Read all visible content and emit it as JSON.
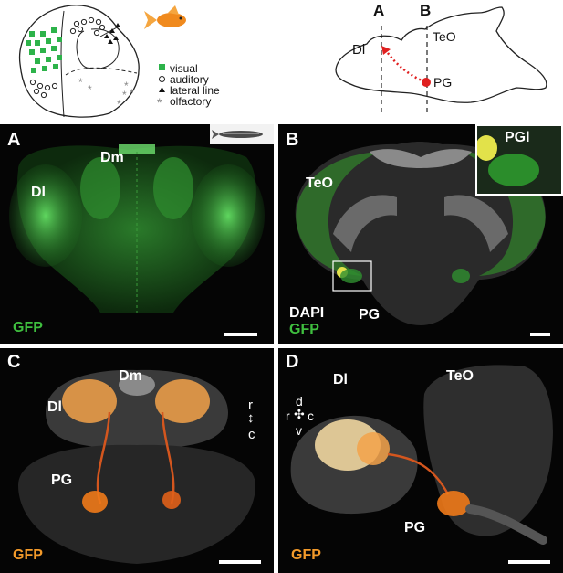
{
  "schematic_left": {
    "legend": {
      "visual": "visual",
      "auditory": "auditory",
      "lateral_line": "lateral line",
      "olfactory": "olfactory"
    },
    "colors": {
      "visual": "#2db34a",
      "goldfish": "#f08a1e"
    },
    "icons": [
      "goldfish-icon"
    ]
  },
  "schematic_right": {
    "plane_a": "A",
    "plane_b": "B",
    "dl": "Dl",
    "teo": "TeO",
    "pg": "PG",
    "colors": {
      "projection": "#e02020"
    }
  },
  "panel_a": {
    "letter": "A",
    "dl": "Dl",
    "dm": "Dm",
    "gfp": "GFP",
    "icons": [
      "zebrafish-icon"
    ]
  },
  "panel_b": {
    "letter": "B",
    "teo": "TeO",
    "pgl": "PGl",
    "dapi": "DAPI",
    "gfp": "GFP",
    "pg": "PG"
  },
  "panel_c": {
    "letter": "C",
    "dm": "Dm",
    "dl": "Dl",
    "pg": "PG",
    "gfp": "GFP",
    "axis_r": "r",
    "axis_c": "c"
  },
  "panel_d": {
    "letter": "D",
    "dl": "Dl",
    "teo": "TeO",
    "pg": "PG",
    "gfp": "GFP",
    "axis_d": "d",
    "axis_r": "r",
    "axis_c": "c",
    "axis_v": "v"
  },
  "colors": {
    "gfp_green": "#3fbf3f",
    "gfp_orange": "#f39a2a"
  }
}
